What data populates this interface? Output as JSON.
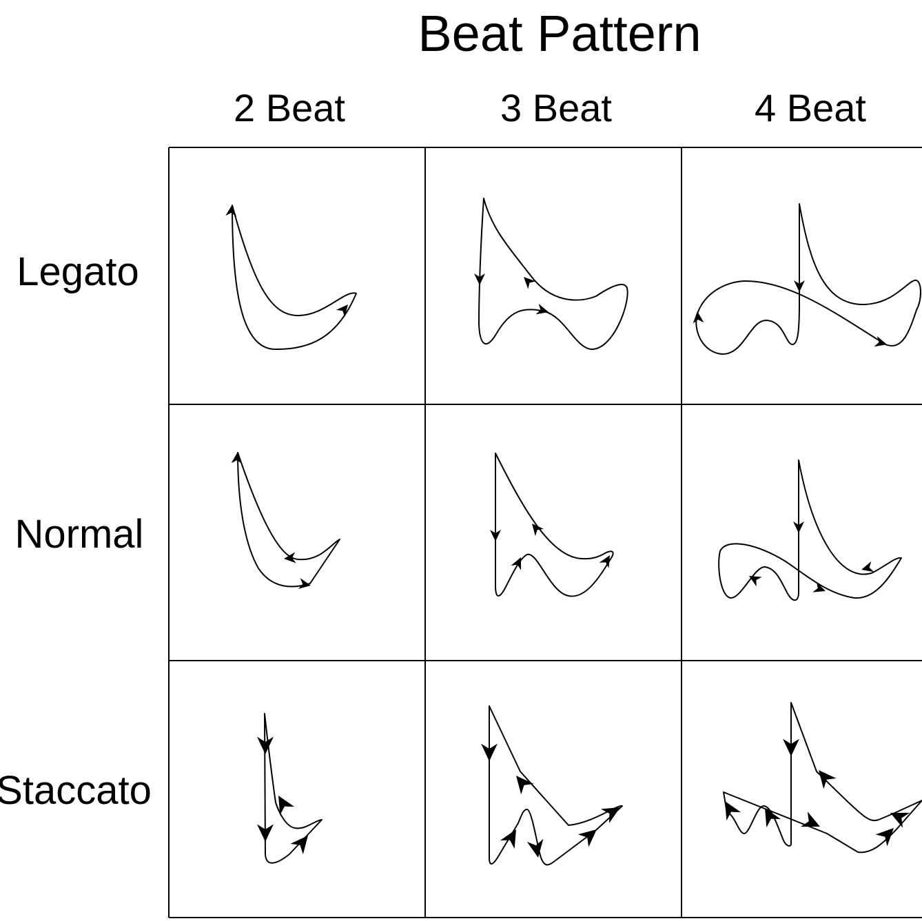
{
  "title": "Beat Pattern",
  "columns": [
    "2 Beat",
    "3 Beat",
    "4 Beat"
  ],
  "rows": [
    "Legato",
    "Normal",
    "Staccato"
  ],
  "cells": [
    {
      "row": "Legato",
      "column": "2 Beat"
    },
    {
      "row": "Legato",
      "column": "3 Beat"
    },
    {
      "row": "Legato",
      "column": "4 Beat"
    },
    {
      "row": "Normal",
      "column": "2 Beat"
    },
    {
      "row": "Normal",
      "column": "3 Beat"
    },
    {
      "row": "Normal",
      "column": "4 Beat"
    },
    {
      "row": "Staccato",
      "column": "2 Beat"
    },
    {
      "row": "Staccato",
      "column": "3 Beat"
    },
    {
      "row": "Staccato",
      "column": "4 Beat"
    }
  ]
}
